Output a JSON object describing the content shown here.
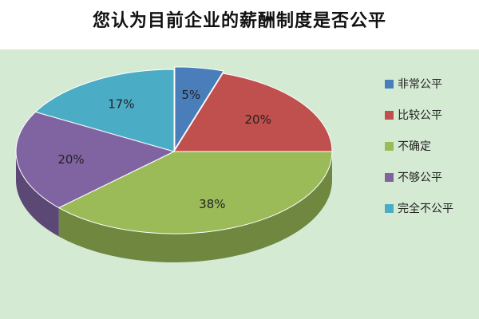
{
  "chart_data": {
    "type": "pie",
    "title": "您认为目前企业的薪酬制度是否公平",
    "slices": [
      {
        "label": "非常公平",
        "value": 5,
        "value_label": "5%",
        "color": "#4a7ebb"
      },
      {
        "label": "比较公平",
        "value": 20,
        "value_label": "20%",
        "color": "#c0504d"
      },
      {
        "label": "不确定",
        "value": 38,
        "value_label": "38%",
        "color": "#9bbb59"
      },
      {
        "label": "不够公平",
        "value": 20,
        "value_label": "20%",
        "color": "#8064a2"
      },
      {
        "label": "完全不公平",
        "value": 17,
        "value_label": "17%",
        "color": "#4bacc6"
      }
    ],
    "legend_position": "right",
    "style": "3d-exploded"
  },
  "colors": {
    "plot_background": "#d4ead3",
    "text": "#222222"
  }
}
